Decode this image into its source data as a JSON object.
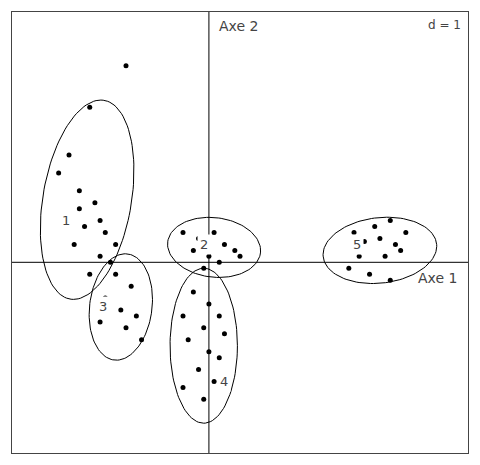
{
  "chart_data": {
    "type": "scatter",
    "xlabel": "Axe 1",
    "ylabel": "Axe 2",
    "annotations": [
      "d = 1"
    ],
    "color": "#000000",
    "xlim": [
      -3.8,
      5.0
    ],
    "ylim": [
      -3.2,
      4.2
    ],
    "xticks": [],
    "yticks": [],
    "tick_labels": false,
    "grid": false,
    "axis_cross": [
      0.0,
      0.0
    ],
    "series": [
      {
        "name": "1",
        "x": [
          -2.3,
          -2.7,
          -2.9,
          -2.5,
          -2.2,
          -2.8,
          -2.4,
          -2.0,
          -2.6,
          -2.1,
          -1.9,
          -2.3,
          -2.5,
          -2.1,
          -1.8
        ],
        "values": [
          2.6,
          1.8,
          1.5,
          1.2,
          1.0,
          0.8,
          0.6,
          0.5,
          0.3,
          0.1,
          0.0,
          -0.2,
          0.9,
          0.7,
          0.3
        ],
        "label_pos": [
          -2.75,
          0.7
        ],
        "ellipse": {
          "center": [
            -2.35,
            1.05
          ],
          "width": 1.7,
          "height": 3.4,
          "angle": -12
        }
      },
      {
        "name": "2",
        "x": [
          -0.5,
          -0.2,
          0.1,
          -0.3,
          0.0,
          0.3,
          0.5,
          -0.1,
          0.2,
          0.6
        ],
        "values": [
          0.5,
          0.4,
          0.5,
          0.2,
          0.1,
          0.3,
          0.2,
          -0.1,
          0.0,
          0.1
        ],
        "label_pos": [
          -0.1,
          0.3
        ],
        "ellipse": {
          "center": [
            0.1,
            0.25
          ],
          "width": 1.8,
          "height": 1.0,
          "angle": -5
        }
      },
      {
        "name": "3",
        "x": [
          -1.8,
          -1.5,
          -2.0,
          -1.7,
          -1.4,
          -2.1,
          -1.6,
          -1.3
        ],
        "values": [
          -0.2,
          -0.4,
          -0.6,
          -0.8,
          -0.9,
          -1.0,
          -1.1,
          -1.3
        ],
        "label_pos": [
          -2.05,
          -0.75
        ],
        "ellipse": {
          "center": [
            -1.7,
            -0.75
          ],
          "width": 1.2,
          "height": 1.8,
          "angle": -10
        }
      },
      {
        "name": "4",
        "x": [
          -0.3,
          0.0,
          -0.5,
          -0.1,
          0.2,
          -0.4,
          0.0,
          -0.2,
          0.1,
          -0.5,
          -0.1,
          0.2,
          0.3
        ],
        "values": [
          -0.5,
          -0.7,
          -0.9,
          -1.1,
          -0.9,
          -1.3,
          -1.5,
          -1.8,
          -2.0,
          -2.1,
          -2.3,
          -1.6,
          -1.2
        ],
        "label_pos": [
          0.3,
          -2.0
        ],
        "ellipse": {
          "center": [
            -0.1,
            -1.4
          ],
          "width": 1.3,
          "height": 2.6,
          "angle": 0
        }
      },
      {
        "name": "5",
        "x": [
          2.8,
          3.2,
          3.5,
          3.0,
          3.3,
          3.6,
          3.8,
          2.9,
          3.4,
          3.7,
          2.7,
          3.1,
          3.5
        ],
        "values": [
          0.5,
          0.6,
          0.7,
          0.35,
          0.4,
          0.3,
          0.5,
          0.1,
          0.1,
          0.2,
          -0.1,
          -0.2,
          -0.3
        ],
        "label_pos": [
          2.85,
          0.3
        ],
        "ellipse": {
          "center": [
            3.3,
            0.2
          ],
          "width": 2.2,
          "height": 1.1,
          "angle": 5
        }
      }
    ],
    "outliers": {
      "x": [
        -1.6
      ],
      "values": [
        3.3
      ]
    }
  }
}
